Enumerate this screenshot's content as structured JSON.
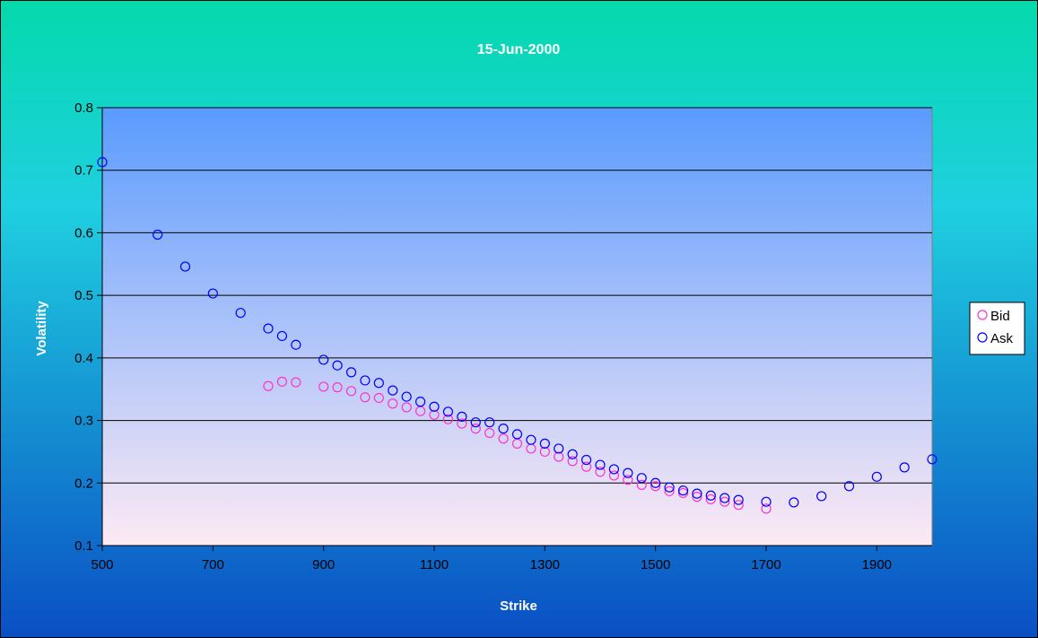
{
  "chart_data": {
    "type": "scatter",
    "title": "15-Jun-2000",
    "xlabel": "Strike",
    "ylabel": "Volatility",
    "xlim": [
      500,
      2000
    ],
    "ylim": [
      0.1,
      0.8
    ],
    "xticks": [
      500,
      700,
      900,
      1100,
      1300,
      1500,
      1700,
      1900
    ],
    "xtick_labels": [
      "500",
      "700",
      "900",
      "1100",
      "1300",
      "1500",
      "1700",
      "1900"
    ],
    "yticks": [
      0.1,
      0.2,
      0.3,
      0.4,
      0.5,
      0.6,
      0.7,
      0.8
    ],
    "ytick_labels": [
      "0.1",
      "0.2",
      "0.3",
      "0.4",
      "0.5",
      "0.6",
      "0.7",
      "0.8"
    ],
    "grid": "horizontal",
    "legend": "right",
    "series": [
      {
        "name": "Bid",
        "color": "#ff33cc",
        "marker": "open-circle",
        "points": [
          [
            800,
            0.355
          ],
          [
            825,
            0.362
          ],
          [
            850,
            0.361
          ],
          [
            900,
            0.354
          ],
          [
            925,
            0.353
          ],
          [
            950,
            0.347
          ],
          [
            975,
            0.337
          ],
          [
            1000,
            0.336
          ],
          [
            1025,
            0.327
          ],
          [
            1050,
            0.321
          ],
          [
            1075,
            0.315
          ],
          [
            1100,
            0.309
          ],
          [
            1125,
            0.302
          ],
          [
            1150,
            0.295
          ],
          [
            1175,
            0.287
          ],
          [
            1200,
            0.28
          ],
          [
            1225,
            0.271
          ],
          [
            1250,
            0.263
          ],
          [
            1275,
            0.255
          ],
          [
            1300,
            0.25
          ],
          [
            1325,
            0.242
          ],
          [
            1350,
            0.235
          ],
          [
            1375,
            0.226
          ],
          [
            1400,
            0.218
          ],
          [
            1425,
            0.212
          ],
          [
            1450,
            0.205
          ],
          [
            1475,
            0.197
          ],
          [
            1500,
            0.195
          ],
          [
            1525,
            0.187
          ],
          [
            1550,
            0.184
          ],
          [
            1575,
            0.178
          ],
          [
            1600,
            0.174
          ],
          [
            1625,
            0.17
          ],
          [
            1650,
            0.165
          ],
          [
            1700,
            0.159
          ]
        ]
      },
      {
        "name": "Ask",
        "color": "#0000ff",
        "marker": "open-circle",
        "points": [
          [
            500,
            0.713
          ],
          [
            600,
            0.597
          ],
          [
            650,
            0.546
          ],
          [
            700,
            0.503
          ],
          [
            750,
            0.472
          ],
          [
            800,
            0.447
          ],
          [
            825,
            0.435
          ],
          [
            850,
            0.421
          ],
          [
            900,
            0.397
          ],
          [
            925,
            0.388
          ],
          [
            950,
            0.377
          ],
          [
            975,
            0.364
          ],
          [
            1000,
            0.36
          ],
          [
            1025,
            0.348
          ],
          [
            1050,
            0.338
          ],
          [
            1075,
            0.33
          ],
          [
            1100,
            0.322
          ],
          [
            1125,
            0.314
          ],
          [
            1150,
            0.306
          ],
          [
            1175,
            0.297
          ],
          [
            1200,
            0.297
          ],
          [
            1225,
            0.287
          ],
          [
            1250,
            0.278
          ],
          [
            1275,
            0.269
          ],
          [
            1300,
            0.263
          ],
          [
            1325,
            0.255
          ],
          [
            1350,
            0.246
          ],
          [
            1375,
            0.237
          ],
          [
            1400,
            0.229
          ],
          [
            1425,
            0.222
          ],
          [
            1450,
            0.216
          ],
          [
            1475,
            0.208
          ],
          [
            1500,
            0.2
          ],
          [
            1525,
            0.193
          ],
          [
            1550,
            0.188
          ],
          [
            1575,
            0.183
          ],
          [
            1600,
            0.18
          ],
          [
            1625,
            0.176
          ],
          [
            1650,
            0.173
          ],
          [
            1700,
            0.17
          ],
          [
            1750,
            0.169
          ],
          [
            1800,
            0.179
          ],
          [
            1850,
            0.195
          ],
          [
            1900,
            0.21
          ],
          [
            1950,
            0.225
          ],
          [
            2000,
            0.238
          ]
        ]
      }
    ]
  },
  "colors": {
    "chart_bg_top": "#04d9ac",
    "chart_bg_mid": "#1fd0e0",
    "chart_bg_bottom": "#0a4fc4",
    "plot_bg_top": "#5a9bff",
    "plot_bg_bottom": "#fdeaf4",
    "grid": "#000000",
    "legend_bg": "#ffffff"
  }
}
